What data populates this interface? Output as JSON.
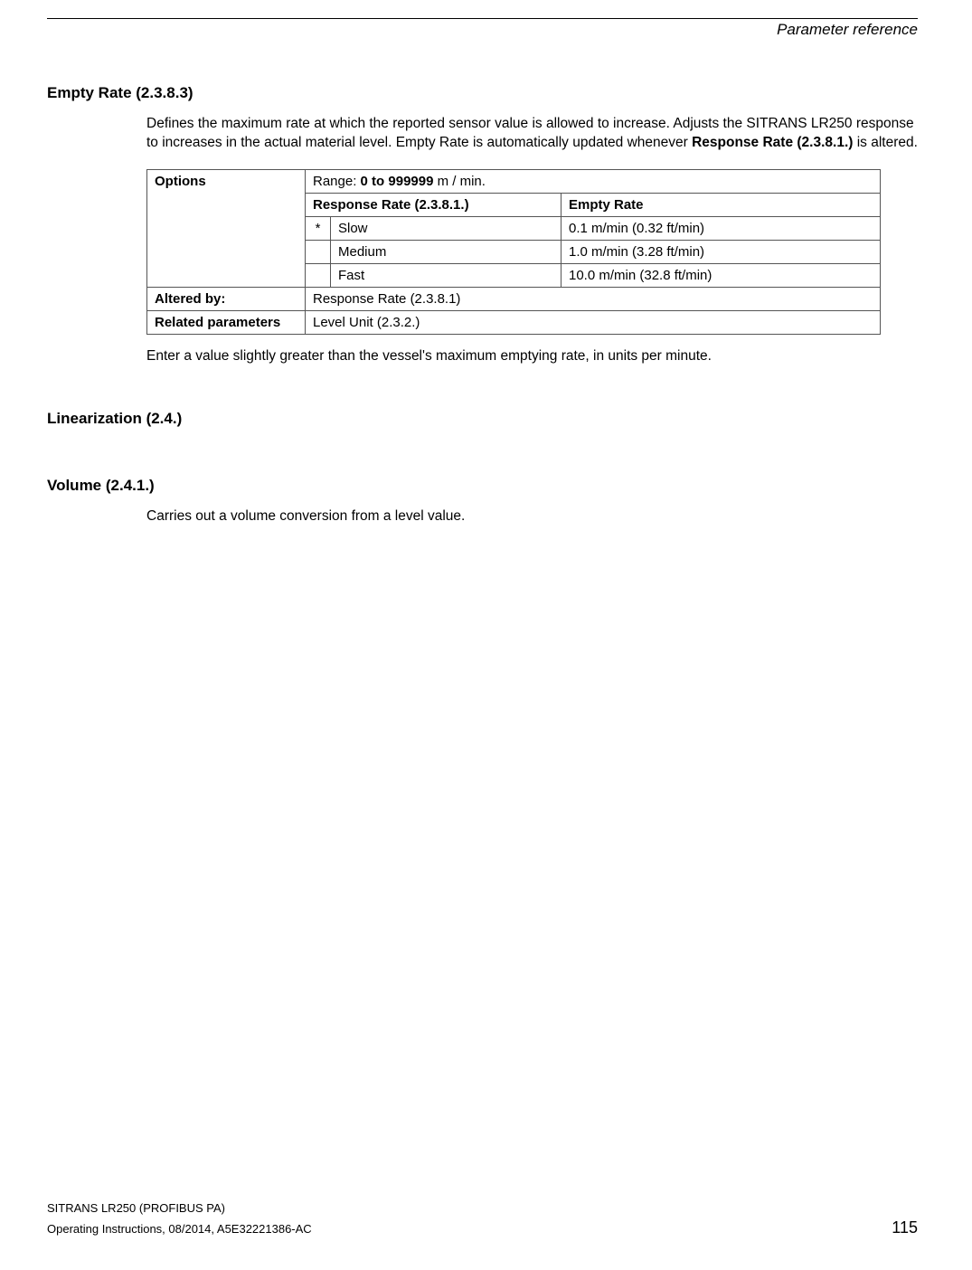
{
  "header": {
    "section_title": "Parameter reference"
  },
  "section1": {
    "heading": "Empty Rate (2.3.8.3)",
    "para_prefix": "Defines the maximum rate at which the reported sensor value is allowed to increase. Adjusts the SITRANS LR250 response to increases in the actual material level. Empty Rate is automatically updated whenever ",
    "para_bold": "Response Rate (2.3.8.1.)",
    "para_suffix": " is altered.",
    "table": {
      "options_label": "Options",
      "range_prefix": "Range: ",
      "range_bold": "0 to 999999",
      "range_suffix": " m / min.",
      "col_response": "Response Rate (2.3.8.1.)",
      "col_empty": "Empty Rate",
      "rows": [
        {
          "star": "*",
          "rate": "Slow",
          "empty": "0.1 m/min (0.32 ft/min)"
        },
        {
          "star": "",
          "rate": "Medium",
          "empty": "1.0 m/min (3.28 ft/min)"
        },
        {
          "star": "",
          "rate": "Fast",
          "empty": "10.0 m/min (32.8 ft/min)"
        }
      ],
      "altered_by_label": "Altered by:",
      "altered_by_value": "Response Rate (2.3.8.1)",
      "related_label": "Related parameters",
      "related_value": "Level Unit (2.3.2.)"
    },
    "after_table": "Enter a value slightly greater than the vessel's maximum emptying rate, in units per minute."
  },
  "section2": {
    "heading": "Linearization (2.4.)"
  },
  "section3": {
    "heading": "Volume (2.4.1.)",
    "para": "Carries out a volume conversion from a level value."
  },
  "footer": {
    "line1": "SITRANS LR250 (PROFIBUS PA)",
    "line2": "Operating Instructions, 08/2014, A5E32221386-AC",
    "page": "115"
  }
}
